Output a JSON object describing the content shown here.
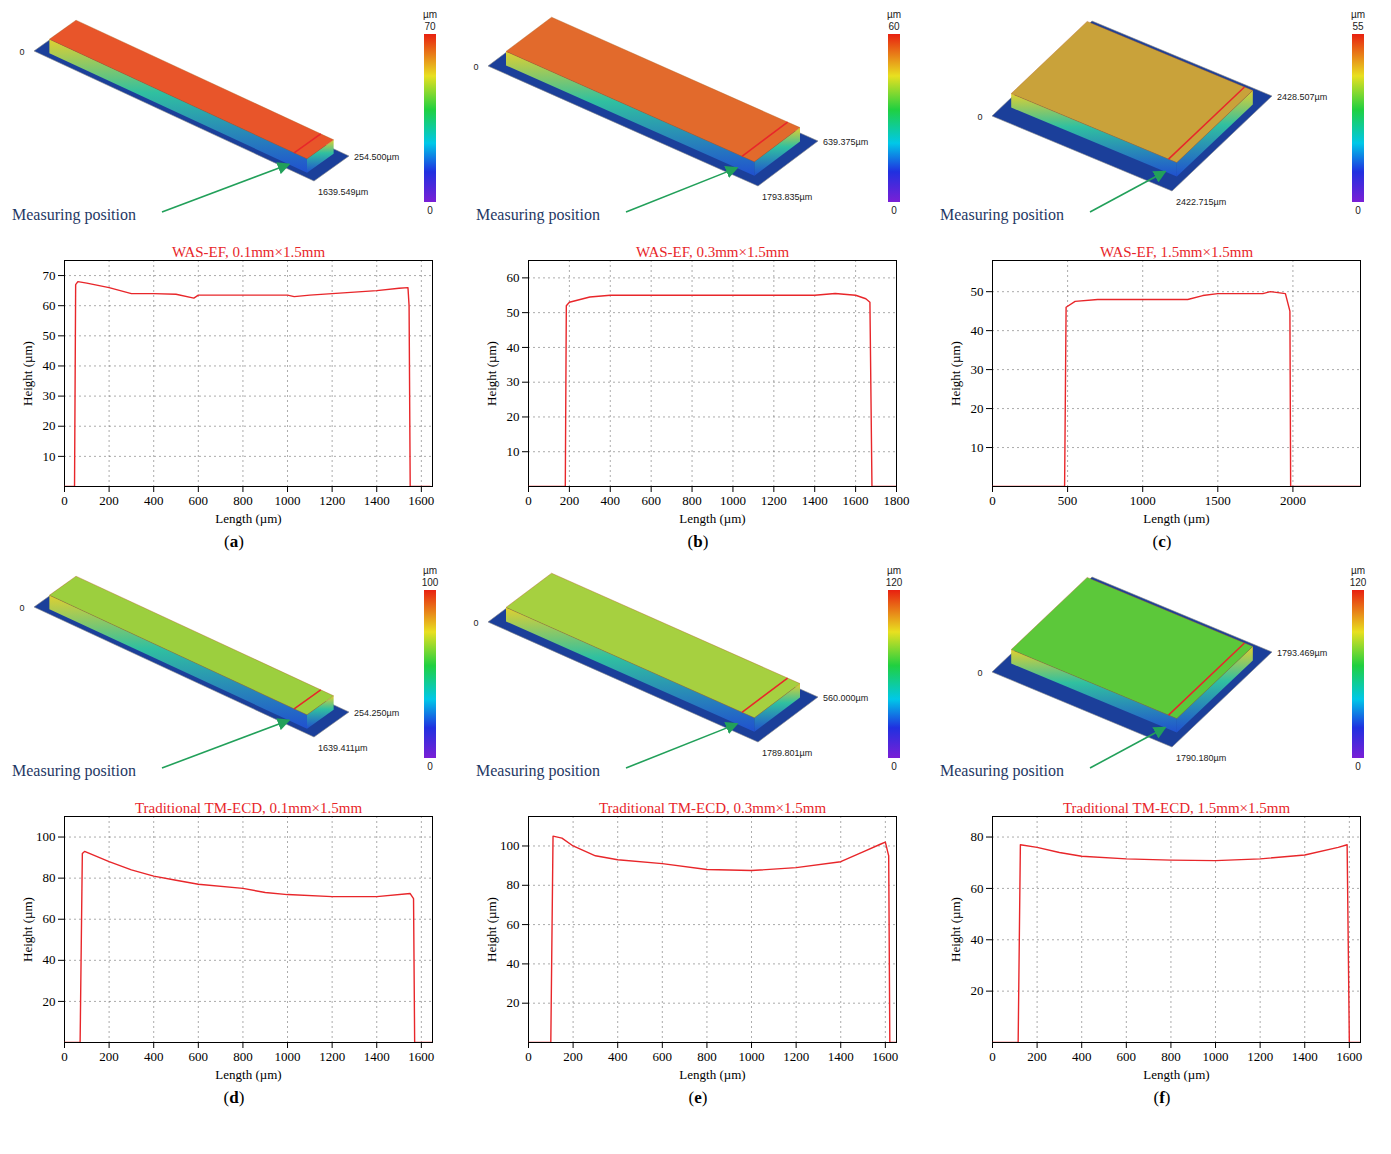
{
  "chart_data": [
    {
      "type": "line",
      "panel": "(a)",
      "title": "WAS-EF, 0.1mm×1.5mm",
      "x_label": "Length (µm)",
      "y_label": "Height (µm)",
      "color": "#e8262a",
      "grid": true,
      "x": [
        0,
        45,
        50,
        60,
        100,
        200,
        300,
        400,
        500,
        580,
        600,
        800,
        1000,
        1030,
        1100,
        1200,
        1300,
        1400,
        1500,
        1540,
        1545,
        1550,
        1640
      ],
      "values": [
        0,
        0,
        67,
        68,
        67.5,
        66,
        64,
        64,
        63.8,
        62.5,
        63.5,
        63.5,
        63.5,
        63,
        63.5,
        64,
        64.5,
        65,
        65.8,
        66,
        60,
        0,
        0
      ],
      "xlim": [
        0,
        1650
      ],
      "ylim": [
        0,
        75
      ],
      "xticks": [
        0,
        200,
        400,
        600,
        800,
        1000,
        1200,
        1400,
        1600
      ],
      "yticks": [
        10,
        20,
        30,
        40,
        50,
        60,
        70
      ],
      "annotation": "Measuring position",
      "image_labels": [
        "0",
        "254.500µm",
        "1639.549µm"
      ],
      "colorbar": {
        "label": "µm",
        "range": [
          0,
          70
        ],
        "ticks": [
          0,
          70
        ]
      }
    },
    {
      "type": "line",
      "panel": "(b)",
      "title": "WAS-EF, 0.3mm×1.5mm",
      "x_label": "Length (µm)",
      "y_label": "Height (µm)",
      "color": "#e8262a",
      "grid": true,
      "x": [
        0,
        180,
        185,
        200,
        300,
        400,
        600,
        800,
        1000,
        1200,
        1400,
        1500,
        1600,
        1650,
        1670,
        1680,
        1800
      ],
      "values": [
        0,
        0,
        52,
        53,
        54.5,
        55,
        55,
        55,
        55,
        55,
        55,
        55.5,
        55,
        54,
        53,
        0,
        0
      ],
      "xlim": [
        0,
        1800
      ],
      "ylim": [
        0,
        65
      ],
      "xticks": [
        0,
        200,
        400,
        600,
        800,
        1000,
        1200,
        1400,
        1600,
        1800
      ],
      "yticks": [
        10,
        20,
        30,
        40,
        50,
        60
      ],
      "annotation": "Measuring position",
      "image_labels": [
        "0",
        "639.375µm",
        "1793.835µm"
      ],
      "colorbar": {
        "label": "µm",
        "range": [
          0,
          60
        ],
        "ticks": [
          0,
          60
        ]
      }
    },
    {
      "type": "line",
      "panel": "(c)",
      "title": "WAS-EF, 1.5mm×1.5mm",
      "x_label": "Length (µm)",
      "y_label": "Height (µm)",
      "color": "#e8262a",
      "grid": true,
      "x": [
        0,
        480,
        490,
        550,
        700,
        1000,
        1300,
        1400,
        1500,
        1800,
        1850,
        1950,
        1980,
        1985,
        2450
      ],
      "values": [
        0,
        0,
        46,
        47.5,
        48,
        48,
        48,
        49,
        49.5,
        49.5,
        50,
        49.5,
        45,
        0,
        0
      ],
      "xlim": [
        0,
        2450
      ],
      "ylim": [
        0,
        58
      ],
      "xticks": [
        0,
        500,
        1000,
        1500,
        2000
      ],
      "yticks": [
        10,
        20,
        30,
        40,
        50
      ],
      "annotation": "Measuring position",
      "image_labels": [
        "0",
        "2428.507µm",
        "2422.715µm"
      ],
      "colorbar": {
        "label": "µm",
        "range": [
          0,
          55
        ],
        "ticks": [
          0,
          55
        ]
      }
    },
    {
      "type": "line",
      "panel": "(d)",
      "title": "Traditional TM-ECD, 0.1mm×1.5mm",
      "x_label": "Length (µm)",
      "y_label": "Height (µm)",
      "color": "#e8262a",
      "grid": true,
      "x": [
        0,
        70,
        80,
        90,
        200,
        300,
        400,
        500,
        600,
        800,
        900,
        1000,
        1200,
        1400,
        1550,
        1565,
        1570,
        1650
      ],
      "values": [
        0,
        0,
        92,
        93,
        88,
        84,
        81,
        79,
        77,
        75,
        73,
        72,
        71,
        71,
        72.5,
        70,
        0,
        0
      ],
      "xlim": [
        0,
        1650
      ],
      "ylim": [
        0,
        110
      ],
      "xticks": [
        0,
        200,
        400,
        600,
        800,
        1000,
        1200,
        1400,
        1600
      ],
      "yticks": [
        20,
        40,
        60,
        80,
        100
      ],
      "annotation": "Measuring position",
      "image_labels": [
        "0",
        "254.250µm",
        "1639.411µm"
      ],
      "colorbar": {
        "label": "µm",
        "range": [
          0,
          100
        ],
        "ticks": [
          0,
          100
        ]
      }
    },
    {
      "type": "line",
      "panel": "(e)",
      "title": "Traditional TM-ECD, 0.3mm×1.5mm",
      "x_label": "Length (µm)",
      "y_label": "Height (µm)",
      "color": "#e8262a",
      "grid": true,
      "x": [
        0,
        100,
        110,
        150,
        200,
        300,
        400,
        600,
        800,
        1000,
        1200,
        1400,
        1500,
        1580,
        1600,
        1615,
        1620,
        1650
      ],
      "values": [
        0,
        0,
        105,
        104,
        100,
        95,
        93,
        91,
        88,
        87.5,
        89,
        92,
        97,
        101,
        102,
        95,
        0,
        0
      ],
      "xlim": [
        0,
        1650
      ],
      "ylim": [
        0,
        115
      ],
      "xticks": [
        0,
        200,
        400,
        600,
        800,
        1000,
        1200,
        1400,
        1600
      ],
      "yticks": [
        20,
        40,
        60,
        80,
        100
      ],
      "annotation": "Measuring position",
      "image_labels": [
        "0",
        "560.000µm",
        "1789.801µm"
      ],
      "colorbar": {
        "label": "µm",
        "range": [
          0,
          120
        ],
        "ticks": [
          0,
          120
        ]
      }
    },
    {
      "type": "line",
      "panel": "(f)",
      "title": "Traditional TM-ECD, 1.5mm×1.5mm",
      "x_label": "Length (µm)",
      "y_label": "Height (µm)",
      "color": "#e8262a",
      "grid": true,
      "x": [
        0,
        115,
        125,
        200,
        300,
        400,
        600,
        800,
        1000,
        1200,
        1400,
        1550,
        1590,
        1600,
        1650
      ],
      "values": [
        0,
        0,
        77,
        76,
        74,
        72.5,
        71.5,
        71,
        70.8,
        71.5,
        73,
        76,
        77,
        0,
        0
      ],
      "xlim": [
        0,
        1650
      ],
      "ylim": [
        0,
        88
      ],
      "xticks": [
        0,
        200,
        400,
        600,
        800,
        1000,
        1200,
        1400,
        1600
      ],
      "yticks": [
        20,
        40,
        60,
        80
      ],
      "annotation": "Measuring position",
      "image_labels": [
        "0",
        "1793.469µm",
        "1790.180µm"
      ],
      "colorbar": {
        "label": "µm",
        "range": [
          0,
          120
        ],
        "ticks": [
          0,
          120
        ]
      }
    }
  ]
}
